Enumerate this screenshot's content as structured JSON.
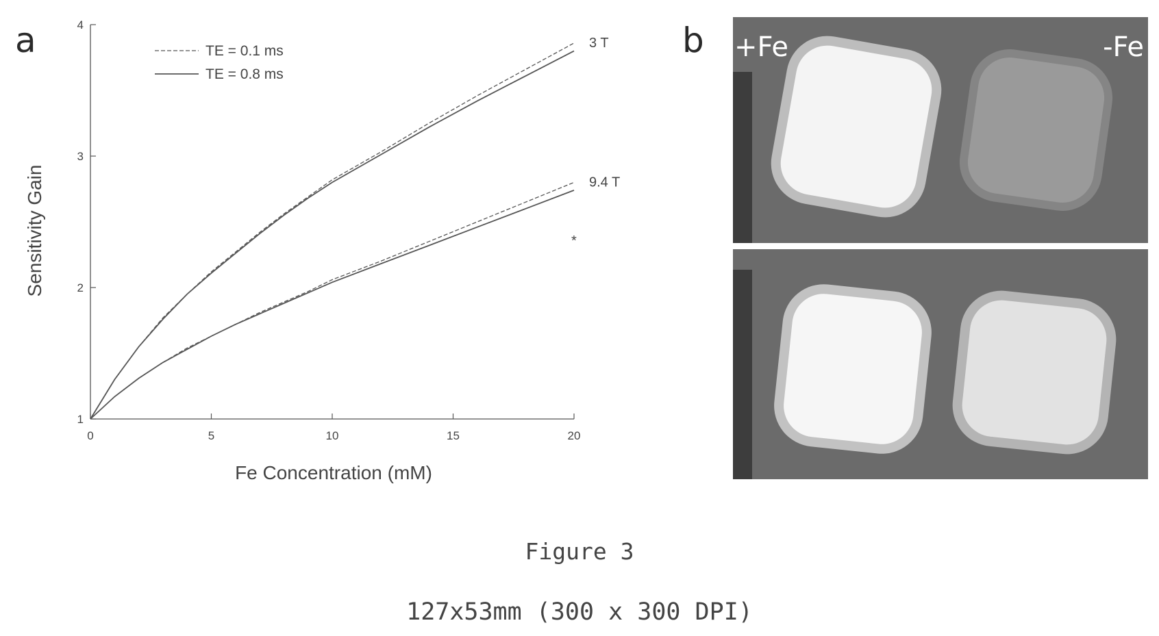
{
  "panel_a_label": "a",
  "panel_b_label": "b",
  "chart_data": {
    "type": "line",
    "title": "",
    "xlabel": "Fe Concentration (mM)",
    "ylabel": "Sensitivity Gain",
    "xlim": [
      0,
      20
    ],
    "ylim": [
      1,
      4
    ],
    "xticks": [
      0,
      5,
      10,
      15,
      20
    ],
    "yticks": [
      1,
      2,
      3,
      4
    ],
    "grid": false,
    "legend": {
      "placement": "top-left",
      "entries": [
        {
          "label": "TE = 0.1 ms",
          "style": "dashed"
        },
        {
          "label": "TE = 0.8 ms",
          "style": "solid"
        }
      ]
    },
    "x": [
      0,
      1,
      2,
      3,
      4,
      5,
      6,
      7,
      8,
      9,
      10,
      12,
      14,
      16,
      18,
      20
    ],
    "series": [
      {
        "name": "TE = 0.1 ms",
        "field": "3 T",
        "style": "dashed",
        "values": [
          1.0,
          1.3,
          1.55,
          1.77,
          1.95,
          2.12,
          2.27,
          2.42,
          2.56,
          2.69,
          2.82,
          3.03,
          3.25,
          3.46,
          3.66,
          3.86
        ]
      },
      {
        "name": "TE = 0.8 ms",
        "field": "3 T",
        "style": "solid",
        "values": [
          1.0,
          1.3,
          1.55,
          1.76,
          1.95,
          2.11,
          2.26,
          2.41,
          2.55,
          2.68,
          2.8,
          3.01,
          3.22,
          3.42,
          3.61,
          3.8
        ]
      },
      {
        "name": "TE = 0.1 ms",
        "field": "9.4 T",
        "style": "dashed",
        "values": [
          1.0,
          1.17,
          1.31,
          1.43,
          1.54,
          1.63,
          1.72,
          1.81,
          1.89,
          1.97,
          2.06,
          2.2,
          2.35,
          2.5,
          2.65,
          2.8
        ]
      },
      {
        "name": "TE = 0.8 ms",
        "field": "9.4 T",
        "style": "solid",
        "values": [
          1.0,
          1.17,
          1.31,
          1.43,
          1.53,
          1.63,
          1.72,
          1.8,
          1.88,
          1.96,
          2.04,
          2.18,
          2.32,
          2.46,
          2.6,
          2.74
        ]
      }
    ],
    "annotations": [
      {
        "text": "3 T",
        "x": 20,
        "y": 3.86
      },
      {
        "text": "9.4 T",
        "x": 20,
        "y": 2.8
      },
      {
        "text": "*",
        "x": 20,
        "y": 2.5
      }
    ]
  },
  "mri": {
    "top": {
      "left_label": "+Fe",
      "right_label": "-Fe"
    }
  },
  "caption": {
    "figure": "Figure 3",
    "size": "127x53mm (300 x 300 DPI)"
  }
}
